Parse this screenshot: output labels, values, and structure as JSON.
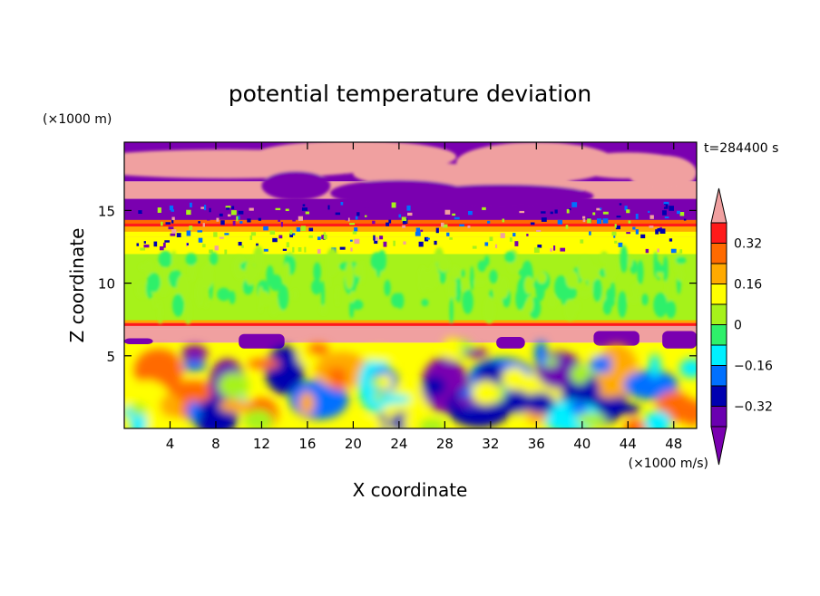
{
  "chart_data": {
    "type": "heatmap",
    "title": "potential temperature deviation",
    "xlabel": "X coordinate",
    "ylabel": "Z coordinate",
    "x_unit": "(×1000 m/s)",
    "y_unit": "(×1000 m)",
    "time_label": "t=284400 s",
    "xlim": [
      0,
      50
    ],
    "ylim": [
      0,
      19.7
    ],
    "x_ticks": [
      4,
      8,
      12,
      16,
      20,
      24,
      28,
      32,
      36,
      40,
      44,
      48
    ],
    "y_ticks": [
      5,
      10,
      15
    ],
    "colorbar": {
      "tick_labels": [
        "0.32",
        "0.16",
        "0",
        "−0.16",
        "−0.32"
      ],
      "tick_values": [
        0.32,
        0.16,
        0,
        -0.16,
        -0.32
      ],
      "levels": [
        -0.4,
        -0.32,
        -0.24,
        -0.16,
        -0.08,
        0,
        0.08,
        0.16,
        0.24,
        0.32,
        0.4
      ],
      "colors": [
        "#f0a0a0",
        "#ff1a1a",
        "#ff6a00",
        "#ffaa00",
        "#ffff00",
        "#a6f21a",
        "#2ef06a",
        "#00f0ff",
        "#0070ff",
        "#0000b0",
        "#6a00b0",
        "#7a00b0"
      ],
      "extend": "both"
    },
    "bands": [
      {
        "z": [
          17.0,
          19.7
        ],
        "value": -0.45
      },
      {
        "z": [
          15.8,
          17.0
        ],
        "value": 0.45
      },
      {
        "z": [
          14.3,
          15.8
        ],
        "value": -0.45
      },
      {
        "z": [
          13.2,
          14.3
        ],
        "value": 0.34
      },
      {
        "z": [
          12.0,
          13.2
        ],
        "value": 0.14
      },
      {
        "z": [
          7.3,
          12.0
        ],
        "value": 0.03
      },
      {
        "z": [
          6.8,
          7.3
        ],
        "value": 0.45
      },
      {
        "z": [
          5.9,
          6.8
        ],
        "value": 0.45
      },
      {
        "z": [
          0,
          5.9
        ],
        "value": 0.1
      }
    ]
  }
}
